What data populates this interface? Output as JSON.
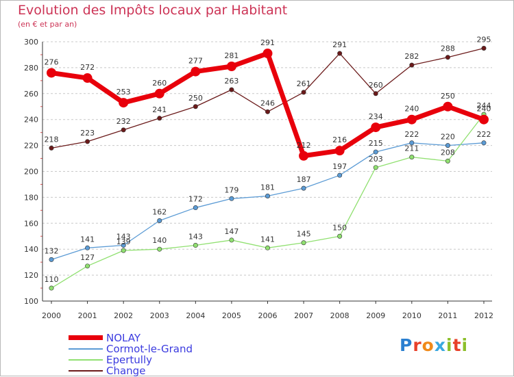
{
  "title": "Evolution des Impôts locaux par Habitant",
  "subtitle": "(en € et par an)",
  "brand": {
    "letters": [
      "P",
      "r",
      "o",
      "x",
      "i",
      "t",
      "i"
    ],
    "letter_colors": [
      "#2a7fd0",
      "#e8402a",
      "#f08a1a",
      "#3aa8e0",
      "#8cbf2a",
      "#e8402a",
      "#8cbf2a"
    ]
  },
  "chart_data": {
    "type": "line",
    "title": "Evolution des Impôts locaux par Habitant",
    "ylabel": "(en € et par an)",
    "xlabel": "",
    "x": [
      "2000",
      "2001",
      "2002",
      "2003",
      "2004",
      "2005",
      "2006",
      "2007",
      "2008",
      "2009",
      "2010",
      "2011",
      "2012"
    ],
    "ylim": [
      100,
      300
    ],
    "yticks": [
      100,
      120,
      140,
      160,
      180,
      200,
      220,
      240,
      260,
      280,
      300
    ],
    "grid": "horizontal dashed",
    "legend_position": "bottom-left",
    "series": [
      {
        "name": "NOLAY",
        "color": "#e8000b",
        "values": [
          276,
          272,
          253,
          260,
          277,
          281,
          291,
          212,
          216,
          234,
          240,
          250,
          240
        ],
        "labels": [
          "276",
          "272",
          "253",
          "260",
          "277",
          "281",
          "291",
          "212",
          "216",
          "234",
          "240",
          "250",
          "240"
        ]
      },
      {
        "name": "Cormot-le-Grand",
        "color": "#5b9bd5",
        "values": [
          132,
          141,
          143,
          162,
          172,
          179,
          181,
          187,
          197,
          215,
          222,
          220,
          222
        ],
        "labels": [
          "132",
          "141",
          "143",
          "162",
          "172",
          "179",
          "181",
          "187",
          "197",
          "215",
          "222",
          "220",
          "222"
        ]
      },
      {
        "name": "Epertully",
        "color": "#90e070",
        "values": [
          110,
          127,
          139,
          140,
          143,
          147,
          141,
          145,
          150,
          203,
          211,
          208,
          244
        ],
        "labels": [
          "110",
          "127",
          "139",
          "140",
          "143",
          "147",
          "141",
          "145",
          "150",
          "203",
          "211",
          "208",
          "244"
        ]
      },
      {
        "name": "Change",
        "color": "#6b1a1a",
        "values": [
          218,
          223,
          232,
          241,
          250,
          263,
          246,
          261,
          291,
          260,
          282,
          288,
          295
        ],
        "labels": [
          "218",
          "223",
          "232",
          "241",
          "250",
          "263",
          "246",
          "261",
          "291",
          "260",
          "282",
          "288",
          "295"
        ]
      }
    ]
  }
}
